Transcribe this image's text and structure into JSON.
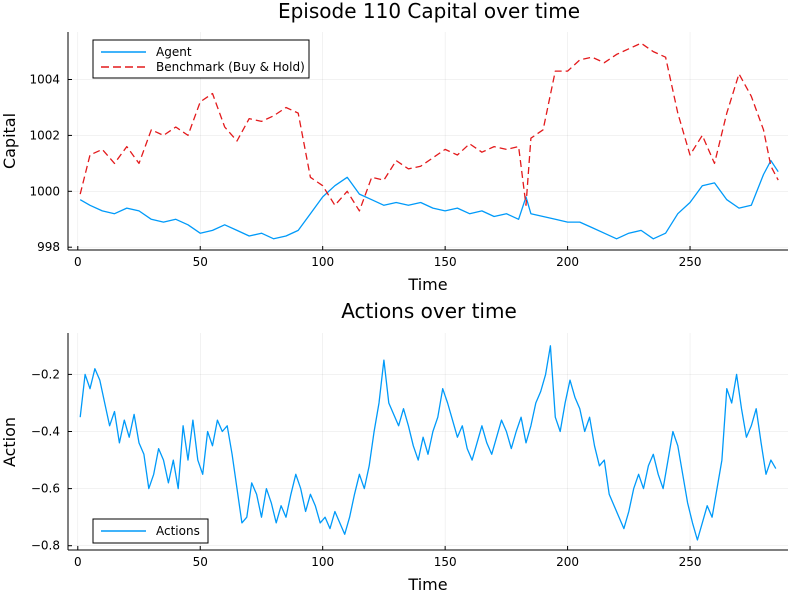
{
  "chart_data": [
    {
      "type": "line",
      "title": "Episode 110 Capital over time",
      "xlabel": "Time",
      "ylabel": "Capital",
      "xlim": [
        -4,
        290
      ],
      "ylim": [
        997.9,
        1005.7
      ],
      "xticks": [
        0,
        50,
        100,
        150,
        200,
        250
      ],
      "yticks": [
        998,
        1000,
        1002,
        1004
      ],
      "grid": true,
      "legend_position": "top-left",
      "series": [
        {
          "name": "Agent",
          "color": "#009af9",
          "style": "solid",
          "points": [
            [
              1,
              999.7
            ],
            [
              5,
              999.5
            ],
            [
              10,
              999.3
            ],
            [
              15,
              999.2
            ],
            [
              20,
              999.4
            ],
            [
              25,
              999.3
            ],
            [
              30,
              999.0
            ],
            [
              35,
              998.9
            ],
            [
              40,
              999.0
            ],
            [
              45,
              998.8
            ],
            [
              50,
              998.5
            ],
            [
              55,
              998.6
            ],
            [
              60,
              998.8
            ],
            [
              65,
              998.6
            ],
            [
              70,
              998.4
            ],
            [
              75,
              998.5
            ],
            [
              80,
              998.3
            ],
            [
              85,
              998.4
            ],
            [
              90,
              998.6
            ],
            [
              95,
              999.2
            ],
            [
              100,
              999.8
            ],
            [
              105,
              1000.2
            ],
            [
              110,
              1000.5
            ],
            [
              115,
              999.9
            ],
            [
              120,
              999.7
            ],
            [
              125,
              999.5
            ],
            [
              130,
              999.6
            ],
            [
              135,
              999.5
            ],
            [
              140,
              999.6
            ],
            [
              145,
              999.4
            ],
            [
              150,
              999.3
            ],
            [
              155,
              999.4
            ],
            [
              160,
              999.2
            ],
            [
              165,
              999.3
            ],
            [
              170,
              999.1
            ],
            [
              175,
              999.2
            ],
            [
              180,
              999.0
            ],
            [
              183,
              999.8
            ],
            [
              185,
              999.2
            ],
            [
              190,
              999.1
            ],
            [
              195,
              999.0
            ],
            [
              200,
              998.9
            ],
            [
              205,
              998.9
            ],
            [
              210,
              998.7
            ],
            [
              215,
              998.5
            ],
            [
              220,
              998.3
            ],
            [
              225,
              998.5
            ],
            [
              230,
              998.6
            ],
            [
              235,
              998.3
            ],
            [
              240,
              998.5
            ],
            [
              245,
              999.2
            ],
            [
              250,
              999.6
            ],
            [
              255,
              1000.2
            ],
            [
              260,
              1000.3
            ],
            [
              265,
              999.7
            ],
            [
              270,
              999.4
            ],
            [
              275,
              999.5
            ],
            [
              280,
              1000.6
            ],
            [
              283,
              1001.1
            ],
            [
              286,
              1000.7
            ]
          ]
        },
        {
          "name": "Benchmark (Buy & Hold)",
          "color": "#e31a1c",
          "style": "dashed",
          "points": [
            [
              1,
              999.9
            ],
            [
              5,
              1001.3
            ],
            [
              10,
              1001.5
            ],
            [
              15,
              1001.0
            ],
            [
              20,
              1001.6
            ],
            [
              25,
              1001.0
            ],
            [
              30,
              1002.2
            ],
            [
              35,
              1002.0
            ],
            [
              40,
              1002.3
            ],
            [
              45,
              1002.0
            ],
            [
              50,
              1003.2
            ],
            [
              55,
              1003.5
            ],
            [
              60,
              1002.3
            ],
            [
              65,
              1001.8
            ],
            [
              70,
              1002.6
            ],
            [
              75,
              1002.5
            ],
            [
              80,
              1002.7
            ],
            [
              85,
              1003.0
            ],
            [
              90,
              1002.8
            ],
            [
              95,
              1000.5
            ],
            [
              100,
              1000.2
            ],
            [
              105,
              999.5
            ],
            [
              110,
              1000.0
            ],
            [
              115,
              999.3
            ],
            [
              120,
              1000.5
            ],
            [
              125,
              1000.4
            ],
            [
              130,
              1001.1
            ],
            [
              135,
              1000.8
            ],
            [
              140,
              1000.9
            ],
            [
              145,
              1001.2
            ],
            [
              150,
              1001.5
            ],
            [
              155,
              1001.3
            ],
            [
              160,
              1001.7
            ],
            [
              165,
              1001.4
            ],
            [
              170,
              1001.6
            ],
            [
              175,
              1001.5
            ],
            [
              180,
              1001.6
            ],
            [
              183,
              999.5
            ],
            [
              185,
              1001.9
            ],
            [
              190,
              1002.2
            ],
            [
              195,
              1004.3
            ],
            [
              200,
              1004.3
            ],
            [
              205,
              1004.7
            ],
            [
              210,
              1004.8
            ],
            [
              215,
              1004.6
            ],
            [
              220,
              1004.9
            ],
            [
              225,
              1005.1
            ],
            [
              230,
              1005.3
            ],
            [
              235,
              1005.0
            ],
            [
              240,
              1004.8
            ],
            [
              245,
              1002.8
            ],
            [
              250,
              1001.3
            ],
            [
              255,
              1002.0
            ],
            [
              260,
              1001.0
            ],
            [
              265,
              1002.8
            ],
            [
              270,
              1004.2
            ],
            [
              275,
              1003.4
            ],
            [
              280,
              1002.2
            ],
            [
              283,
              1000.9
            ],
            [
              286,
              1000.4
            ]
          ]
        }
      ]
    },
    {
      "type": "line",
      "title": "Actions over time",
      "xlabel": "Time",
      "ylabel": "Action",
      "xlim": [
        -4,
        290
      ],
      "ylim": [
        -0.815,
        -0.055
      ],
      "xticks": [
        0,
        50,
        100,
        150,
        200,
        250
      ],
      "yticks": [
        -0.8,
        -0.6,
        -0.4,
        -0.2
      ],
      "grid": true,
      "legend_position": "bottom-left",
      "series": [
        {
          "name": "Actions",
          "color": "#009af9",
          "style": "solid",
          "points": [
            [
              1,
              -0.35
            ],
            [
              3,
              -0.2
            ],
            [
              5,
              -0.25
            ],
            [
              7,
              -0.18
            ],
            [
              9,
              -0.22
            ],
            [
              11,
              -0.3
            ],
            [
              13,
              -0.38
            ],
            [
              15,
              -0.33
            ],
            [
              17,
              -0.44
            ],
            [
              19,
              -0.36
            ],
            [
              21,
              -0.42
            ],
            [
              23,
              -0.34
            ],
            [
              25,
              -0.44
            ],
            [
              27,
              -0.48
            ],
            [
              29,
              -0.6
            ],
            [
              31,
              -0.55
            ],
            [
              33,
              -0.46
            ],
            [
              35,
              -0.5
            ],
            [
              37,
              -0.58
            ],
            [
              39,
              -0.5
            ],
            [
              41,
              -0.6
            ],
            [
              43,
              -0.38
            ],
            [
              45,
              -0.5
            ],
            [
              47,
              -0.36
            ],
            [
              49,
              -0.5
            ],
            [
              51,
              -0.55
            ],
            [
              53,
              -0.4
            ],
            [
              55,
              -0.45
            ],
            [
              57,
              -0.36
            ],
            [
              59,
              -0.4
            ],
            [
              61,
              -0.38
            ],
            [
              63,
              -0.48
            ],
            [
              65,
              -0.6
            ],
            [
              67,
              -0.72
            ],
            [
              69,
              -0.7
            ],
            [
              71,
              -0.58
            ],
            [
              73,
              -0.62
            ],
            [
              75,
              -0.7
            ],
            [
              77,
              -0.6
            ],
            [
              79,
              -0.65
            ],
            [
              81,
              -0.72
            ],
            [
              83,
              -0.66
            ],
            [
              85,
              -0.7
            ],
            [
              87,
              -0.62
            ],
            [
              89,
              -0.55
            ],
            [
              91,
              -0.6
            ],
            [
              93,
              -0.68
            ],
            [
              95,
              -0.62
            ],
            [
              97,
              -0.66
            ],
            [
              99,
              -0.72
            ],
            [
              101,
              -0.7
            ],
            [
              103,
              -0.74
            ],
            [
              105,
              -0.68
            ],
            [
              107,
              -0.72
            ],
            [
              109,
              -0.76
            ],
            [
              111,
              -0.7
            ],
            [
              113,
              -0.62
            ],
            [
              115,
              -0.55
            ],
            [
              117,
              -0.6
            ],
            [
              119,
              -0.52
            ],
            [
              121,
              -0.4
            ],
            [
              123,
              -0.3
            ],
            [
              125,
              -0.15
            ],
            [
              127,
              -0.3
            ],
            [
              129,
              -0.34
            ],
            [
              131,
              -0.38
            ],
            [
              133,
              -0.32
            ],
            [
              135,
              -0.38
            ],
            [
              137,
              -0.45
            ],
            [
              139,
              -0.5
            ],
            [
              141,
              -0.42
            ],
            [
              143,
              -0.48
            ],
            [
              145,
              -0.4
            ],
            [
              147,
              -0.35
            ],
            [
              149,
              -0.25
            ],
            [
              151,
              -0.3
            ],
            [
              153,
              -0.36
            ],
            [
              155,
              -0.42
            ],
            [
              157,
              -0.38
            ],
            [
              159,
              -0.46
            ],
            [
              161,
              -0.5
            ],
            [
              163,
              -0.44
            ],
            [
              165,
              -0.38
            ],
            [
              167,
              -0.44
            ],
            [
              169,
              -0.48
            ],
            [
              171,
              -0.42
            ],
            [
              173,
              -0.36
            ],
            [
              175,
              -0.4
            ],
            [
              177,
              -0.46
            ],
            [
              179,
              -0.4
            ],
            [
              181,
              -0.35
            ],
            [
              183,
              -0.44
            ],
            [
              185,
              -0.38
            ],
            [
              187,
              -0.3
            ],
            [
              189,
              -0.26
            ],
            [
              191,
              -0.2
            ],
            [
              193,
              -0.1
            ],
            [
              195,
              -0.35
            ],
            [
              197,
              -0.4
            ],
            [
              199,
              -0.3
            ],
            [
              201,
              -0.22
            ],
            [
              203,
              -0.28
            ],
            [
              205,
              -0.32
            ],
            [
              207,
              -0.4
            ],
            [
              209,
              -0.35
            ],
            [
              211,
              -0.45
            ],
            [
              213,
              -0.52
            ],
            [
              215,
              -0.5
            ],
            [
              217,
              -0.62
            ],
            [
              219,
              -0.66
            ],
            [
              221,
              -0.7
            ],
            [
              223,
              -0.74
            ],
            [
              225,
              -0.68
            ],
            [
              227,
              -0.6
            ],
            [
              229,
              -0.55
            ],
            [
              231,
              -0.6
            ],
            [
              233,
              -0.52
            ],
            [
              235,
              -0.48
            ],
            [
              237,
              -0.55
            ],
            [
              239,
              -0.6
            ],
            [
              241,
              -0.5
            ],
            [
              243,
              -0.4
            ],
            [
              245,
              -0.45
            ],
            [
              247,
              -0.55
            ],
            [
              249,
              -0.65
            ],
            [
              251,
              -0.72
            ],
            [
              253,
              -0.78
            ],
            [
              255,
              -0.72
            ],
            [
              257,
              -0.66
            ],
            [
              259,
              -0.7
            ],
            [
              261,
              -0.6
            ],
            [
              263,
              -0.5
            ],
            [
              265,
              -0.25
            ],
            [
              267,
              -0.3
            ],
            [
              269,
              -0.2
            ],
            [
              271,
              -0.32
            ],
            [
              273,
              -0.42
            ],
            [
              275,
              -0.38
            ],
            [
              277,
              -0.32
            ],
            [
              279,
              -0.44
            ],
            [
              281,
              -0.55
            ],
            [
              283,
              -0.5
            ],
            [
              285,
              -0.53
            ]
          ]
        }
      ]
    }
  ]
}
